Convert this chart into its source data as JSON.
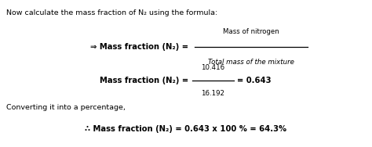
{
  "bg_color": "#ffffff",
  "line1": "Now calculate the mass fraction of N₂ using the formula:",
  "arrow_label": "⇒ Mass fraction (N₂) =",
  "numerator": "Mass of nitrogen",
  "denominator": "Total mass of the mixture",
  "line3_left": "Mass fraction (N₂) =",
  "num_value": "10.416",
  "den_value": "16.192",
  "line3_right": "= 0.643",
  "line4": "Converting it into a percentage,",
  "line5_therefore": "∴ Mass fraction (N₂) = 0.643 x 100 % = 64.3%",
  "fig_w": 4.74,
  "fig_h": 1.88,
  "dpi": 100
}
